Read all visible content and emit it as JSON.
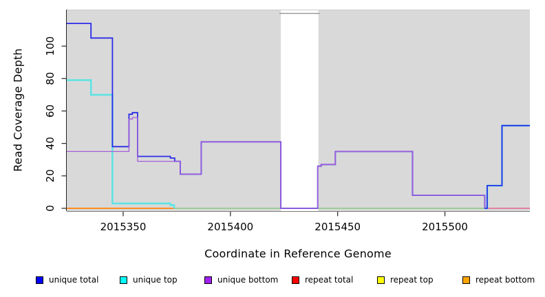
{
  "figure": {
    "kind": "R step-line coverage plot",
    "background_color": "#ffffff",
    "panel_color": "#d9d9d9",
    "masked_band_color": "#ffffff"
  },
  "chart_data": {
    "type": "line",
    "step": true,
    "title": "",
    "xlabel": "Coordinate in Reference Genome",
    "ylabel": "Read Coverage Depth",
    "xlim": [
      2015323.7,
      2015539.6
    ],
    "ylim": [
      -1.7,
      122.5
    ],
    "x_ticks": [
      2015350,
      2015400,
      2015450,
      2015500
    ],
    "y_ticks": [
      0,
      20,
      40,
      60,
      80,
      100
    ],
    "grid": false,
    "legend_position": "bottom",
    "masked_region": {
      "x_start": 2015423.5,
      "x_end": 2015441.0
    },
    "series": [
      {
        "name": "unique total",
        "legend_color": "#0000ff",
        "draw_color": "#2b2be8",
        "line_width": 1.8,
        "segments": [
          [
            [
              2015323.7,
              114
            ],
            [
              2015335,
              105
            ],
            [
              2015345,
              38
            ],
            [
              2015352.7,
              58
            ],
            [
              2015354.3,
              59
            ],
            [
              2015356.7,
              32
            ],
            [
              2015372,
              31
            ],
            [
              2015374,
              29
            ],
            [
              2015376.6,
              21
            ],
            [
              2015386.4,
              41
            ],
            [
              2015423.5,
              0
            ],
            [
              2015440.7,
              26
            ],
            [
              2015442.3,
              27
            ],
            [
              2015448.9,
              35
            ],
            [
              2015484.9,
              8
            ],
            [
              2015518.6,
              0
            ],
            [
              2015519.7,
              14
            ],
            [
              2015526.6,
              51
            ],
            [
              2015539.6,
              51
            ]
          ]
        ]
      },
      {
        "name": "unique top",
        "legend_color": "#00ffff",
        "draw_color": "#5fe3e3",
        "line_width": 2.6,
        "segments": [
          [
            [
              2015323.7,
              79
            ],
            [
              2015335,
              70
            ],
            [
              2015345,
              3
            ],
            [
              2015372,
              2
            ],
            [
              2015373.7,
              0
            ]
          ],
          [
            [
              2015518.6,
              0
            ],
            [
              2015519.7,
              14
            ],
            [
              2015526.6,
              51
            ],
            [
              2015539.6,
              51
            ]
          ]
        ]
      },
      {
        "name": "unique bottom",
        "legend_color": "#a020f0",
        "draw_color": "#a65cdb",
        "line_width": 1.3,
        "segments": [
          [
            [
              2015323.7,
              35
            ],
            [
              2015352.7,
              55
            ],
            [
              2015354.3,
              56
            ],
            [
              2015356.7,
              29
            ],
            [
              2015376.6,
              21
            ],
            [
              2015386.4,
              41
            ],
            [
              2015423.5,
              0
            ],
            [
              2015440.7,
              26
            ],
            [
              2015442.3,
              27
            ],
            [
              2015448.9,
              35
            ],
            [
              2015484.9,
              8
            ],
            [
              2015518.6,
              0
            ]
          ]
        ]
      },
      {
        "name": "repeat total",
        "legend_color": "#ff0000",
        "draw_color": "#e8618c",
        "line_width": 1.6,
        "segments": [
          [
            [
              2015519.7,
              0
            ],
            [
              2015539.6,
              0
            ]
          ]
        ]
      },
      {
        "name": "repeat top",
        "legend_color": "#ffff00",
        "draw_color": "#84c884",
        "line_width": 1.6,
        "segments": [
          [
            [
              2015373.7,
              0
            ],
            [
              2015519.7,
              0
            ]
          ]
        ]
      },
      {
        "name": "repeat bottom",
        "legend_color": "#ffa500",
        "draw_color": "#ff8d1f",
        "line_width": 1.9,
        "segments": [
          [
            [
              2015323.7,
              0
            ],
            [
              2015373.7,
              0
            ]
          ]
        ]
      }
    ]
  }
}
